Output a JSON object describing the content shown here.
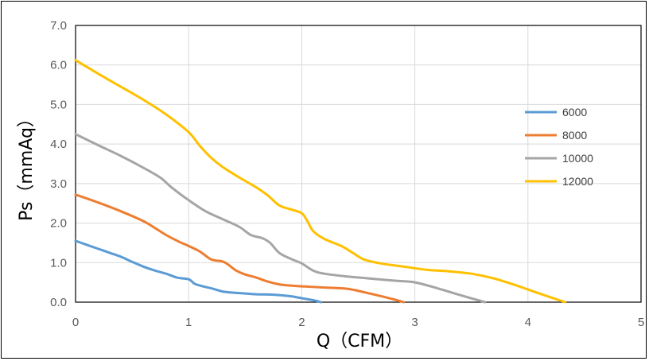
{
  "chart_data": {
    "type": "line",
    "xlabel": "Q（CFM）",
    "ylabel": "Ps（mmAq）",
    "xlim": [
      0,
      5
    ],
    "ylim": [
      0,
      7
    ],
    "x_ticks": [
      "0",
      "1",
      "2",
      "3",
      "4",
      "5"
    ],
    "y_ticks": [
      "0.0",
      "1.0",
      "2.0",
      "3.0",
      "4.0",
      "5.0",
      "6.0",
      "7.0"
    ],
    "grid": true,
    "legend_position": "right",
    "series": [
      {
        "name": "6000",
        "color": "#5B9BD5",
        "points": [
          [
            0,
            1.55
          ],
          [
            0.1,
            1.45
          ],
          [
            0.2,
            1.35
          ],
          [
            0.3,
            1.25
          ],
          [
            0.4,
            1.15
          ],
          [
            0.5,
            1.02
          ],
          [
            0.6,
            0.9
          ],
          [
            0.7,
            0.8
          ],
          [
            0.8,
            0.72
          ],
          [
            0.9,
            0.62
          ],
          [
            1.0,
            0.58
          ],
          [
            1.05,
            0.47
          ],
          [
            1.1,
            0.42
          ],
          [
            1.2,
            0.35
          ],
          [
            1.3,
            0.27
          ],
          [
            1.4,
            0.24
          ],
          [
            1.5,
            0.22
          ],
          [
            1.6,
            0.2
          ],
          [
            1.75,
            0.19
          ],
          [
            1.9,
            0.15
          ],
          [
            2.0,
            0.1
          ],
          [
            2.1,
            0.05
          ],
          [
            2.17,
            0.0
          ]
        ]
      },
      {
        "name": "8000",
        "color": "#ED7D31",
        "points": [
          [
            0,
            2.72
          ],
          [
            0.2,
            2.52
          ],
          [
            0.4,
            2.3
          ],
          [
            0.6,
            2.05
          ],
          [
            0.7,
            1.88
          ],
          [
            0.8,
            1.7
          ],
          [
            0.9,
            1.55
          ],
          [
            1.0,
            1.42
          ],
          [
            1.1,
            1.28
          ],
          [
            1.2,
            1.08
          ],
          [
            1.3,
            1.03
          ],
          [
            1.35,
            0.95
          ],
          [
            1.42,
            0.8
          ],
          [
            1.5,
            0.7
          ],
          [
            1.6,
            0.62
          ],
          [
            1.7,
            0.52
          ],
          [
            1.8,
            0.45
          ],
          [
            1.9,
            0.42
          ],
          [
            2.0,
            0.4
          ],
          [
            2.2,
            0.37
          ],
          [
            2.4,
            0.34
          ],
          [
            2.6,
            0.22
          ],
          [
            2.8,
            0.08
          ],
          [
            2.9,
            0.0
          ]
        ]
      },
      {
        "name": "10000",
        "color": "#A5A5A5",
        "points": [
          [
            0,
            4.25
          ],
          [
            0.2,
            3.97
          ],
          [
            0.4,
            3.7
          ],
          [
            0.6,
            3.4
          ],
          [
            0.75,
            3.15
          ],
          [
            0.85,
            2.9
          ],
          [
            1.0,
            2.58
          ],
          [
            1.15,
            2.3
          ],
          [
            1.3,
            2.1
          ],
          [
            1.45,
            1.9
          ],
          [
            1.55,
            1.7
          ],
          [
            1.65,
            1.62
          ],
          [
            1.72,
            1.5
          ],
          [
            1.8,
            1.25
          ],
          [
            1.9,
            1.1
          ],
          [
            2.0,
            0.98
          ],
          [
            2.1,
            0.8
          ],
          [
            2.2,
            0.72
          ],
          [
            2.4,
            0.65
          ],
          [
            2.6,
            0.6
          ],
          [
            2.8,
            0.55
          ],
          [
            3.0,
            0.5
          ],
          [
            3.2,
            0.35
          ],
          [
            3.4,
            0.18
          ],
          [
            3.62,
            0.0
          ]
        ]
      },
      {
        "name": "12000",
        "color": "#FFC000",
        "points": [
          [
            0,
            6.12
          ],
          [
            0.2,
            5.78
          ],
          [
            0.4,
            5.45
          ],
          [
            0.6,
            5.12
          ],
          [
            0.8,
            4.75
          ],
          [
            1.0,
            4.3
          ],
          [
            1.1,
            3.95
          ],
          [
            1.2,
            3.65
          ],
          [
            1.3,
            3.42
          ],
          [
            1.45,
            3.15
          ],
          [
            1.6,
            2.9
          ],
          [
            1.7,
            2.7
          ],
          [
            1.8,
            2.45
          ],
          [
            1.9,
            2.35
          ],
          [
            2.0,
            2.25
          ],
          [
            2.05,
            2.05
          ],
          [
            2.1,
            1.8
          ],
          [
            2.2,
            1.6
          ],
          [
            2.35,
            1.42
          ],
          [
            2.45,
            1.25
          ],
          [
            2.55,
            1.08
          ],
          [
            2.7,
            0.98
          ],
          [
            2.9,
            0.9
          ],
          [
            3.1,
            0.82
          ],
          [
            3.3,
            0.78
          ],
          [
            3.5,
            0.72
          ],
          [
            3.7,
            0.6
          ],
          [
            3.9,
            0.42
          ],
          [
            4.1,
            0.22
          ],
          [
            4.33,
            0.0
          ]
        ]
      }
    ]
  }
}
